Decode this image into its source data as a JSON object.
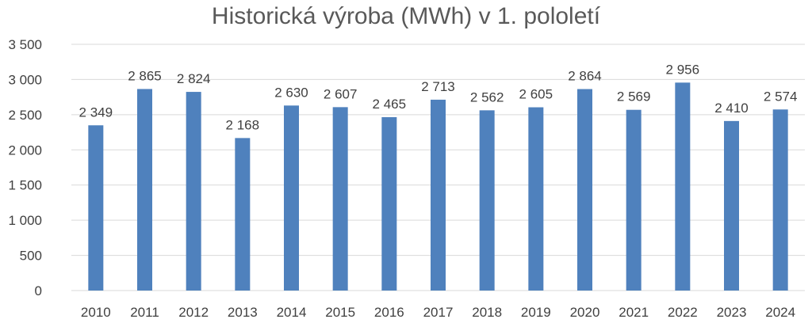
{
  "chart_data": {
    "type": "bar",
    "title": "Historická výroba (MWh) v 1. pololetí",
    "categories": [
      "2010",
      "2011",
      "2012",
      "2013",
      "2014",
      "2015",
      "2016",
      "2017",
      "2018",
      "2019",
      "2020",
      "2021",
      "2022",
      "2023",
      "2024"
    ],
    "values": [
      2349,
      2865,
      2824,
      2168,
      2630,
      2607,
      2465,
      2713,
      2562,
      2605,
      2864,
      2569,
      2956,
      2410,
      2574
    ],
    "data_labels": [
      "2 349",
      "2 865",
      "2 824",
      "2 168",
      "2 630",
      "2 607",
      "2 465",
      "2 713",
      "2 562",
      "2 605",
      "2 864",
      "2 569",
      "2 956",
      "2 410",
      "2 574"
    ],
    "y_ticks": [
      0,
      500,
      1000,
      1500,
      2000,
      2500,
      3000,
      3500
    ],
    "y_tick_labels": [
      "0",
      "500",
      "1 000",
      "1 500",
      "2 000",
      "2 500",
      "3 000",
      "3 500"
    ],
    "ylim": [
      0,
      3500
    ],
    "grid": true,
    "legend": "none",
    "bar_color": "#4f81bd"
  }
}
